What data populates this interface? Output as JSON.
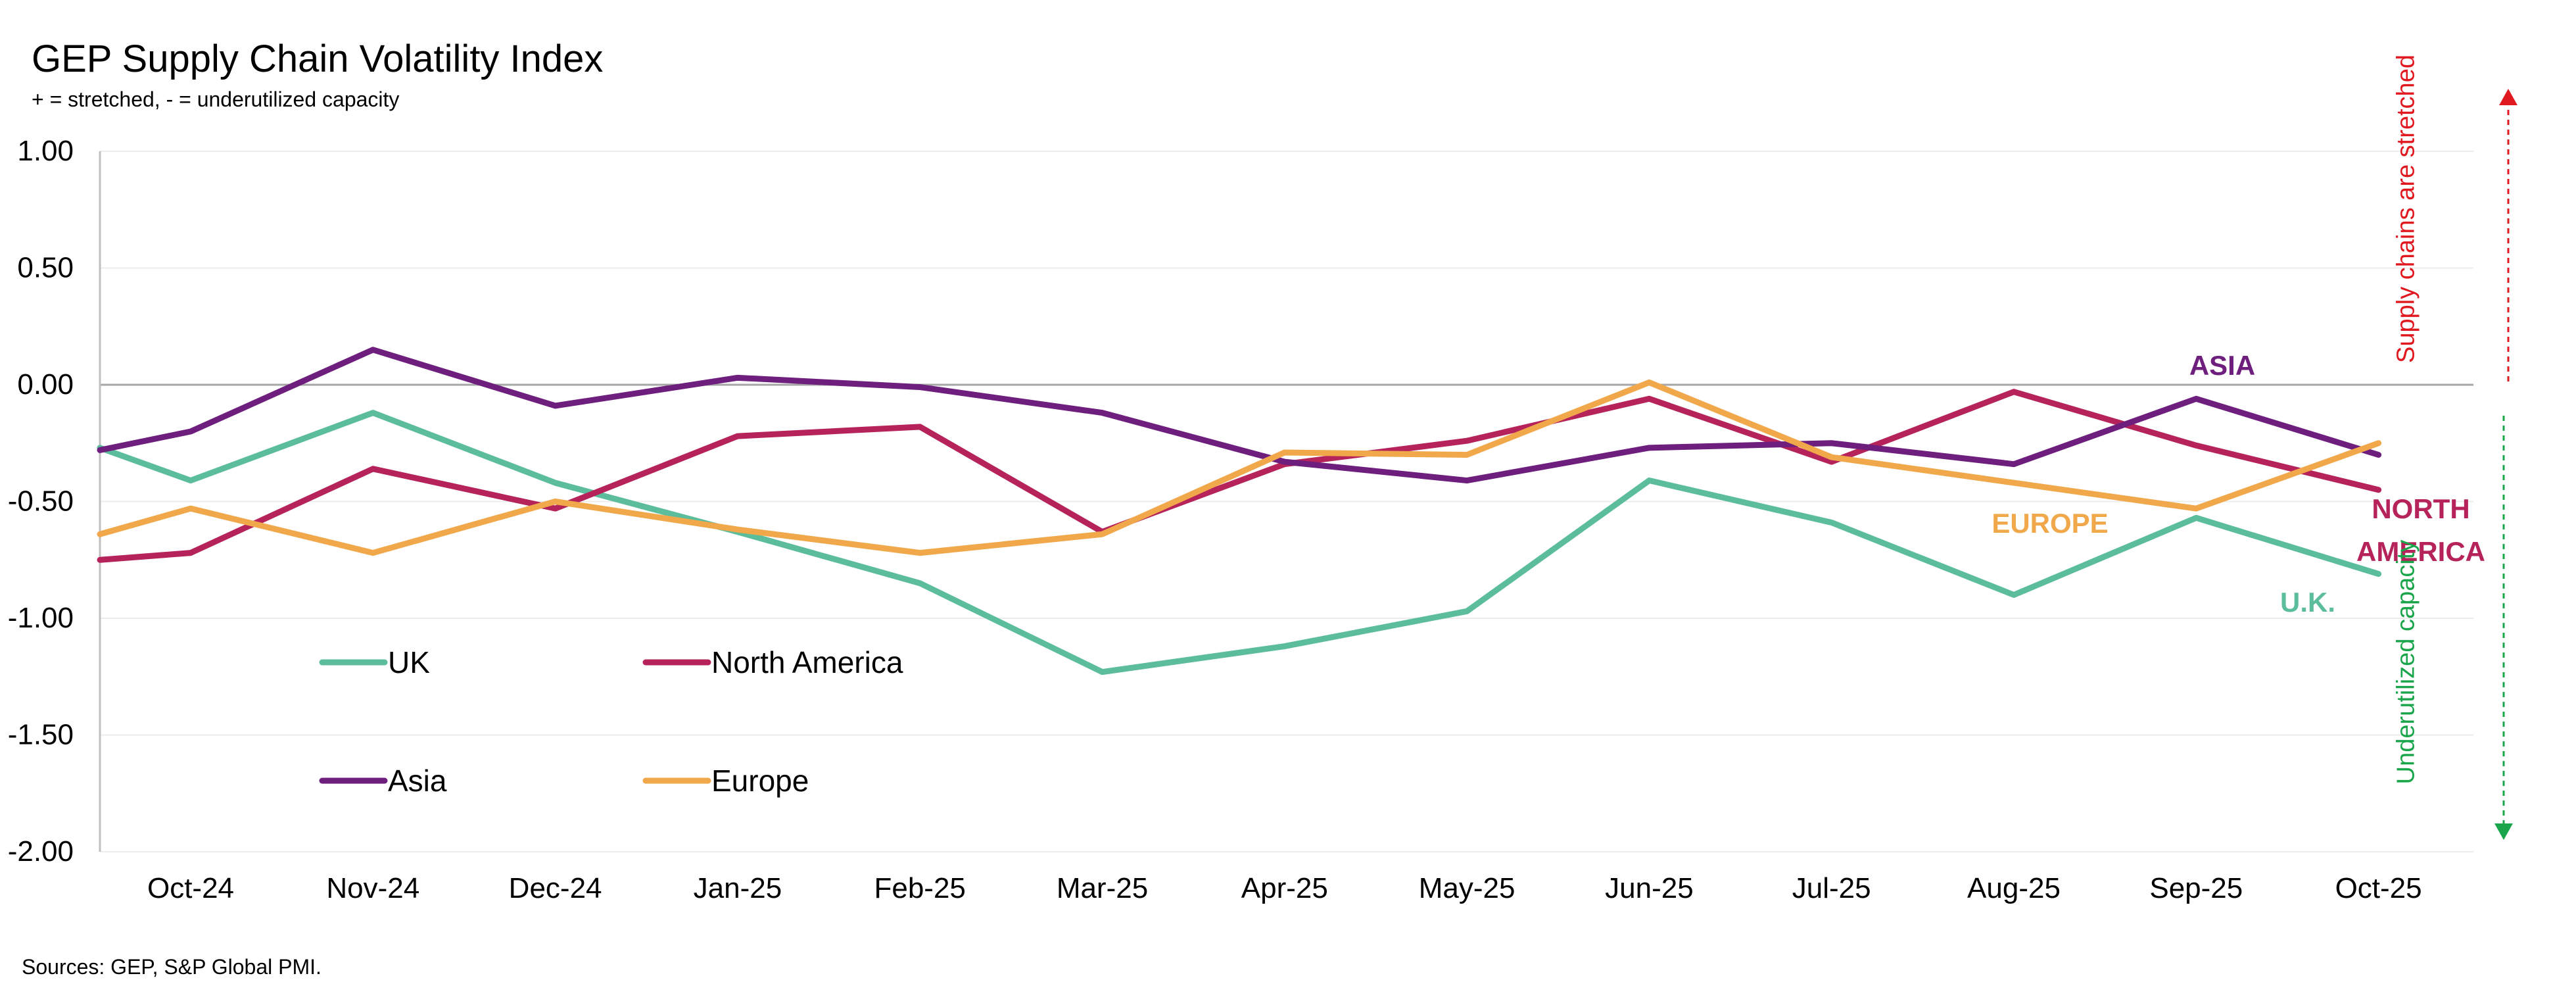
{
  "header": {
    "title": "GEP Supply Chain Volatility Index",
    "subtitle": "+ = stretched, - = underutilized capacity"
  },
  "footer": {
    "source": "Sources: GEP, S&P Global PMI."
  },
  "side_annotations": {
    "top": "Supply chains are stretched",
    "bottom": "Underutilized capacity",
    "top_color": "#e0181f",
    "bottom_color": "#1aa54b"
  },
  "chart_data": {
    "type": "line",
    "title": "GEP Supply Chain Volatility Index",
    "subtitle": "+ = stretched, - = underutilized capacity",
    "categories": [
      "Oct-24",
      "Nov-24",
      "Dec-24",
      "Jan-25",
      "Feb-25",
      "Mar-25",
      "Apr-25",
      "May-25",
      "Jun-25",
      "Jul-25",
      "Aug-25",
      "Sep-25",
      "Oct-25"
    ],
    "ylim": [
      -2.0,
      1.0
    ],
    "yticks": [
      "1.00",
      "0.50",
      "0.00",
      "-0.50",
      "-1.00",
      "-1.50",
      "-2.00"
    ],
    "ytick_values": [
      1.0,
      0.5,
      0.0,
      -0.5,
      -1.0,
      -1.5,
      -2.0
    ],
    "grid": true,
    "legend_placement": "bottom-left inside plot",
    "series": [
      {
        "name": "UK",
        "color": "#5bbd9c",
        "start": -0.27,
        "values": [
          -0.41,
          -0.12,
          -0.42,
          -0.63,
          -0.85,
          -1.23,
          -1.12,
          -0.97,
          -0.41,
          -0.59,
          -0.9,
          -0.57,
          -0.81
        ],
        "end_label": "U.K."
      },
      {
        "name": "North America",
        "color": "#b5235a",
        "start": -0.75,
        "values": [
          -0.72,
          -0.36,
          -0.53,
          -0.22,
          -0.18,
          -0.63,
          -0.34,
          -0.24,
          -0.06,
          -0.33,
          -0.03,
          -0.26,
          -0.45
        ],
        "end_label": "NORTH AMERICA"
      },
      {
        "name": "Asia",
        "color": "#6e1f7e",
        "start": -0.28,
        "values": [
          -0.2,
          0.15,
          -0.09,
          0.03,
          -0.01,
          -0.12,
          -0.33,
          -0.41,
          -0.27,
          -0.25,
          -0.34,
          -0.06,
          -0.3
        ],
        "end_label": "ASIA"
      },
      {
        "name": "Europe",
        "color": "#f0a84a",
        "start": -0.64,
        "values": [
          -0.53,
          -0.72,
          -0.5,
          -0.62,
          -0.72,
          -0.64,
          -0.29,
          -0.3,
          0.01,
          -0.31,
          -0.42,
          -0.53,
          -0.25
        ],
        "end_label": "EUROPE"
      }
    ]
  }
}
